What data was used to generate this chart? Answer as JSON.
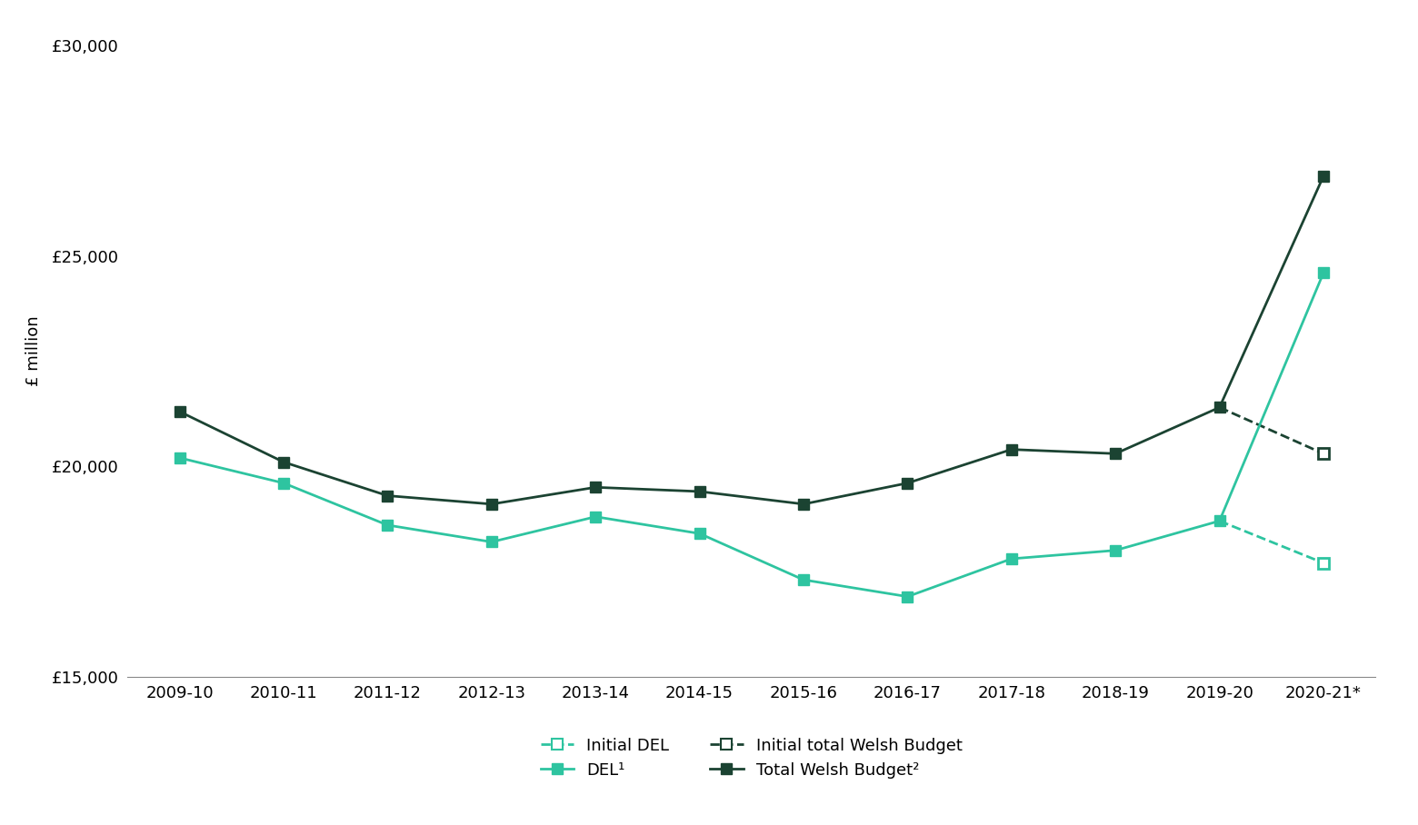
{
  "years": [
    "2009-10",
    "2010-11",
    "2011-12",
    "2012-13",
    "2013-14",
    "2014-15",
    "2015-16",
    "2016-17",
    "2017-18",
    "2018-19",
    "2019-20",
    "2020-21*"
  ],
  "total_welsh_budget": [
    21300,
    20100,
    19300,
    19100,
    19500,
    19400,
    19100,
    19600,
    20400,
    20300,
    21400,
    26900
  ],
  "del": [
    20200,
    19600,
    18600,
    18200,
    18800,
    18400,
    17300,
    16900,
    17800,
    18000,
    18700,
    24600
  ],
  "initial_total_welsh_budget": 20300,
  "initial_del": 17700,
  "total_budget_color": "#1b4332",
  "del_color": "#2ec4a0",
  "ylabel": "£ million",
  "ylim": [
    15000,
    30500
  ],
  "yticks": [
    15000,
    20000,
    25000,
    30000
  ],
  "ytick_labels": [
    "£15,000",
    "£20,000",
    "£25,000",
    "£30,000"
  ],
  "legend_initial_del": "Initial DEL",
  "legend_del": "DEL¹",
  "legend_initial_budget": "Initial total Welsh Budget",
  "legend_total_budget": "Total Welsh Budget²"
}
